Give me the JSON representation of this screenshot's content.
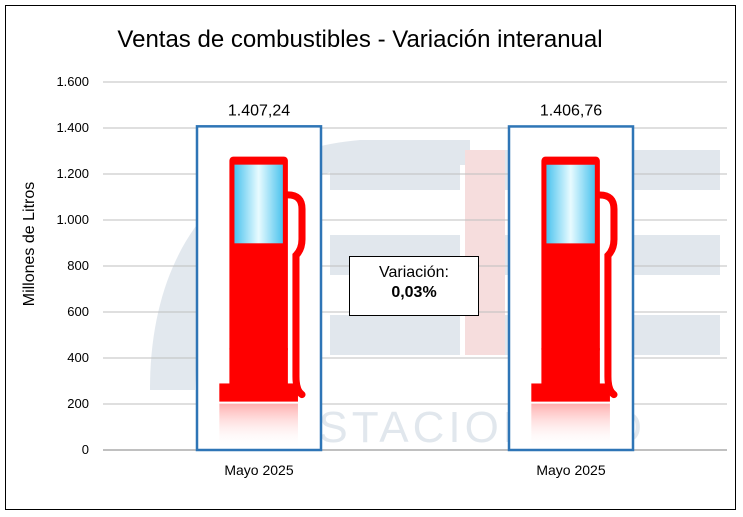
{
  "chart_data": {
    "type": "bar",
    "title": "Ventas de combustibles - Variación interanual",
    "ylabel": "Millones de Litros",
    "xlabel": "",
    "categories": [
      "Mayo 2025",
      "Mayo 2025"
    ],
    "values": [
      1407.24,
      1406.76
    ],
    "data_labels": [
      "1.407,24",
      "1.406,76"
    ],
    "ylim": [
      0,
      1600
    ],
    "yticks": [
      0,
      200,
      400,
      600,
      800,
      1000,
      1200,
      1400,
      1600
    ],
    "ytick_labels": [
      "0",
      "200",
      "400",
      "600",
      "800",
      "1.000",
      "1.200",
      "1.400",
      "1.600"
    ],
    "grid": true,
    "legend": "none",
    "annotation": {
      "label": "Variación:",
      "value": "0,03%"
    },
    "watermark_text": "ESTACIONARO",
    "colors": {
      "bar_border": "#2e75b6",
      "pump": "#ff0000",
      "screen": "#6fd3f7",
      "grid": "#bfbfbf"
    }
  }
}
